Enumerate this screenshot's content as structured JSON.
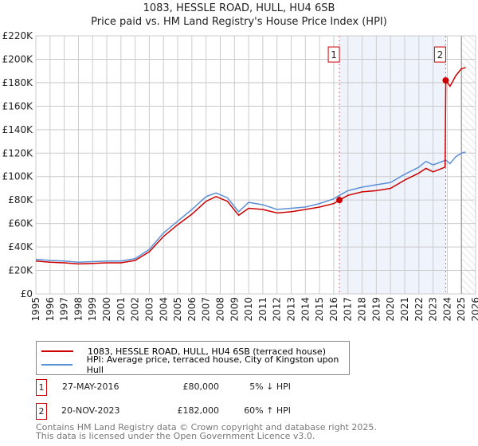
{
  "chart_data": {
    "type": "line",
    "title": "1083, HESSLE ROAD, HULL, HU4 6SB",
    "subtitle": "Price paid vs. HM Land Registry's House Price Index (HPI)",
    "xlim": [
      1995,
      2026
    ],
    "ylim": [
      0,
      220000
    ],
    "y_ticks": [
      "£0",
      "£20K",
      "£40K",
      "£60K",
      "£80K",
      "£100K",
      "£120K",
      "£140K",
      "£160K",
      "£180K",
      "£200K",
      "£220K"
    ],
    "x_ticks": [
      "1995",
      "1996",
      "1997",
      "1998",
      "1999",
      "2000",
      "2001",
      "2002",
      "2003",
      "2004",
      "2005",
      "2006",
      "2007",
      "2008",
      "2009",
      "2010",
      "2011",
      "2012",
      "2013",
      "2014",
      "2015",
      "2016",
      "2017",
      "2018",
      "2019",
      "2020",
      "2021",
      "2022",
      "2023",
      "2024",
      "2025",
      "2026"
    ],
    "grid": true,
    "series": [
      {
        "name": "1083, HESSLE ROAD, HULL, HU4 6SB (terraced house)",
        "color": "#cc0000",
        "x": [
          1995,
          1996,
          1997,
          1998,
          1999,
          2000,
          2001,
          2002,
          2003,
          2004,
          2005,
          2006,
          2007,
          2007.7,
          2008.5,
          2009.3,
          2010,
          2011,
          2012,
          2013,
          2014,
          2015,
          2016,
          2016.4,
          2017,
          2018,
          2019,
          2020,
          2021,
          2022,
          2022.5,
          2023,
          2023.85,
          2023.9,
          2024.2,
          2024.6,
          2025,
          2025.3
        ],
        "y": [
          28000,
          27000,
          26500,
          25500,
          26000,
          26500,
          26500,
          28500,
          36000,
          49000,
          59000,
          68000,
          79000,
          83000,
          79000,
          67000,
          73000,
          72000,
          69000,
          70000,
          72000,
          74000,
          77000,
          80000,
          84000,
          87000,
          88000,
          90000,
          97000,
          103000,
          107000,
          104000,
          108000,
          182000,
          177000,
          186000,
          192000,
          193000
        ]
      },
      {
        "name": "HPI: Average price, terraced house, City of Kingston upon Hull",
        "color": "#5b8fd6",
        "x": [
          1995,
          1996,
          1997,
          1998,
          1999,
          2000,
          2001,
          2002,
          2003,
          2004,
          2005,
          2006,
          2007,
          2007.7,
          2008.5,
          2009.3,
          2010,
          2011,
          2012,
          2013,
          2014,
          2015,
          2016,
          2016.4,
          2017,
          2018,
          2019,
          2020,
          2021,
          2022,
          2022.5,
          2023,
          2023.9,
          2024.2,
          2024.6,
          2025,
          2025.3
        ],
        "y": [
          29500,
          28500,
          28000,
          27000,
          27500,
          28000,
          28000,
          30000,
          38000,
          52000,
          62000,
          72000,
          83000,
          86000,
          82000,
          70000,
          78000,
          76000,
          72000,
          73000,
          74000,
          77000,
          81000,
          84000,
          88000,
          91000,
          93000,
          95000,
          102000,
          108000,
          113000,
          110000,
          114000,
          111000,
          117000,
          120000,
          121000
        ]
      }
    ],
    "annotations": [
      {
        "id": "1",
        "x": 2016.4,
        "y": 80000
      },
      {
        "id": "2",
        "x": 2023.89,
        "y": 182000
      }
    ],
    "shaded_range": [
      2016.4,
      2023.89
    ],
    "hatched_from": 2025.0
  },
  "legend": {
    "red": "1083, HESSLE ROAD, HULL, HU4 6SB (terraced house)",
    "blue": "HPI: Average price, terraced house, City of Kingston upon Hull"
  },
  "sales": [
    {
      "id": "1",
      "date": "27-MAY-2016",
      "price": "£80,000",
      "hpi": "5% ↓ HPI"
    },
    {
      "id": "2",
      "date": "20-NOV-2023",
      "price": "£182,000",
      "hpi": "60% ↑ HPI"
    }
  ],
  "footer": [
    "Contains HM Land Registry data © Crown copyright and database right 2025.",
    "This data is licensed under the Open Government Licence v3.0."
  ]
}
